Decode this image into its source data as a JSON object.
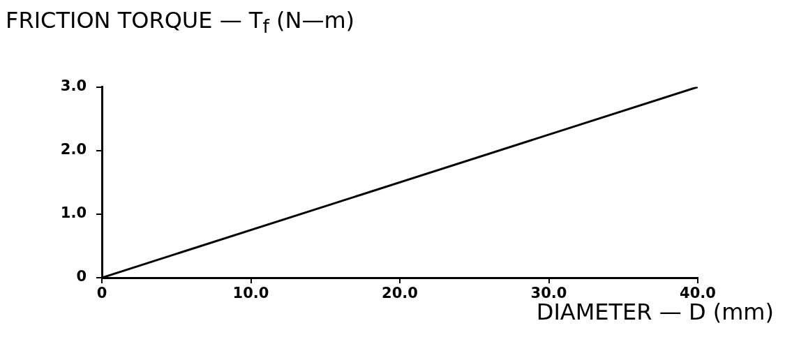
{
  "chart_data": {
    "type": "line",
    "ylabel": "FRICTION TORQUE — T$_{f}$ (N—m)",
    "xlabel": "DIAMETER — D (mm)",
    "x": [
      0,
      40
    ],
    "series": [
      {
        "color": "#000000",
        "values": [
          0,
          3.0
        ]
      }
    ],
    "xlim": [
      0,
      40
    ],
    "ylim": [
      0,
      3.0
    ],
    "xticks": [
      0,
      {
        "value": 10,
        "label": "10.0"
      },
      {
        "value": 20,
        "label": "20.0"
      },
      {
        "value": 30,
        "label": "30.0"
      },
      {
        "value": 40,
        "label": "40.0"
      }
    ],
    "yticks": [
      0,
      {
        "value": 1,
        "label": "1.0"
      },
      {
        "value": 2,
        "label": "2.0"
      },
      {
        "value": 3,
        "label": "3.0"
      }
    ],
    "grid": false,
    "legend": false,
    "marker": "none",
    "line_style": "solid"
  }
}
